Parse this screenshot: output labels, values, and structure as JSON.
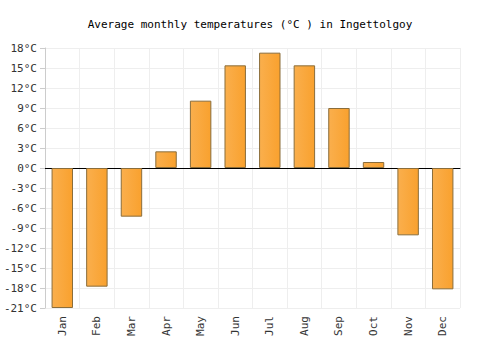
{
  "chart_data": {
    "type": "bar",
    "title": "Average monthly temperatures (°C ) in Ingettolgoy",
    "categories": [
      "Jan",
      "Feb",
      "Mar",
      "Apr",
      "May",
      "Jun",
      "Jul",
      "Aug",
      "Sep",
      "Oct",
      "Nov",
      "Dec"
    ],
    "values": [
      -21,
      -17.8,
      -7.3,
      2.5,
      10.1,
      15.4,
      17.3,
      15.4,
      9.0,
      0.9,
      -10.1,
      -18.2
    ],
    "color": "#f9a12e",
    "ylim": [
      -21,
      18
    ],
    "yticks": [
      {
        "value": -21,
        "label": "-21°C"
      },
      {
        "value": -18,
        "label": "-18°C"
      },
      {
        "value": -15,
        "label": "-15°C"
      },
      {
        "value": -12,
        "label": "-12°C"
      },
      {
        "value": -9,
        "label": "-9°C"
      },
      {
        "value": -6,
        "label": "-6°C"
      },
      {
        "value": -3,
        "label": "-3°C"
      },
      {
        "value": 0,
        "label": "0°C"
      },
      {
        "value": 3,
        "label": "3°C"
      },
      {
        "value": 6,
        "label": "6°C"
      },
      {
        "value": 9,
        "label": "9°C"
      },
      {
        "value": 12,
        "label": "12°C"
      },
      {
        "value": 15,
        "label": "15°C"
      },
      {
        "value": 18,
        "label": "18°C"
      }
    ],
    "grid": true
  }
}
